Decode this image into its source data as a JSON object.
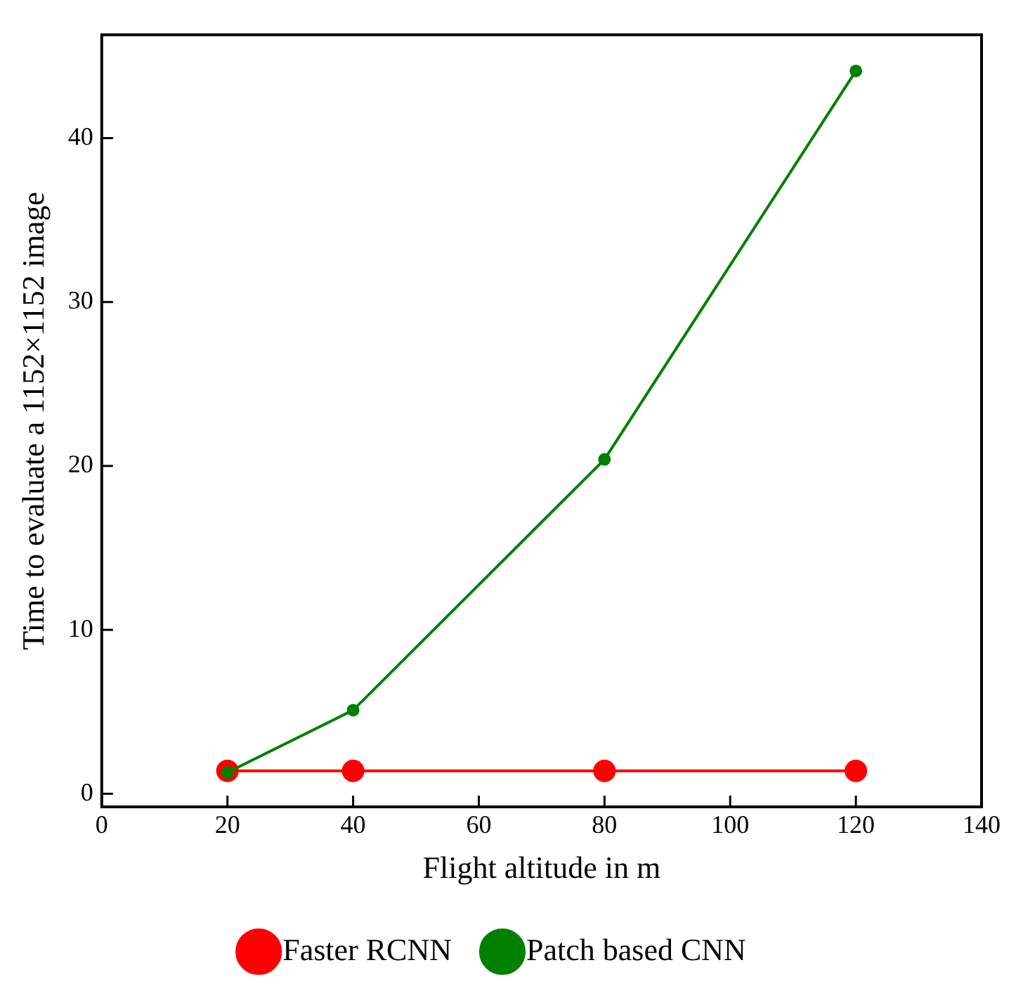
{
  "chart_data": {
    "type": "line",
    "xlabel": "Flight altitude in m",
    "ylabel": "Time to evaluate a 1152×1152 image",
    "xlim": [
      0,
      140
    ],
    "xticks": [
      0,
      20,
      40,
      60,
      80,
      100,
      120,
      140
    ],
    "ylim": [
      -0.8,
      46.3
    ],
    "yticks": [
      0,
      10,
      20,
      30,
      40
    ],
    "grid": false,
    "legend": "bottom",
    "marker": "circle",
    "line_style": "solid",
    "series": [
      {
        "name": "Faster RCNN",
        "color": "#ff0000",
        "x": [
          20,
          40,
          80,
          120
        ],
        "values": [
          1.4,
          1.4,
          1.4,
          1.4
        ]
      },
      {
        "name": "Patch based CNN",
        "color": "#008000",
        "x": [
          20,
          40,
          80,
          120
        ],
        "values": [
          1.3,
          5.1,
          20.4,
          44.1
        ]
      }
    ]
  }
}
